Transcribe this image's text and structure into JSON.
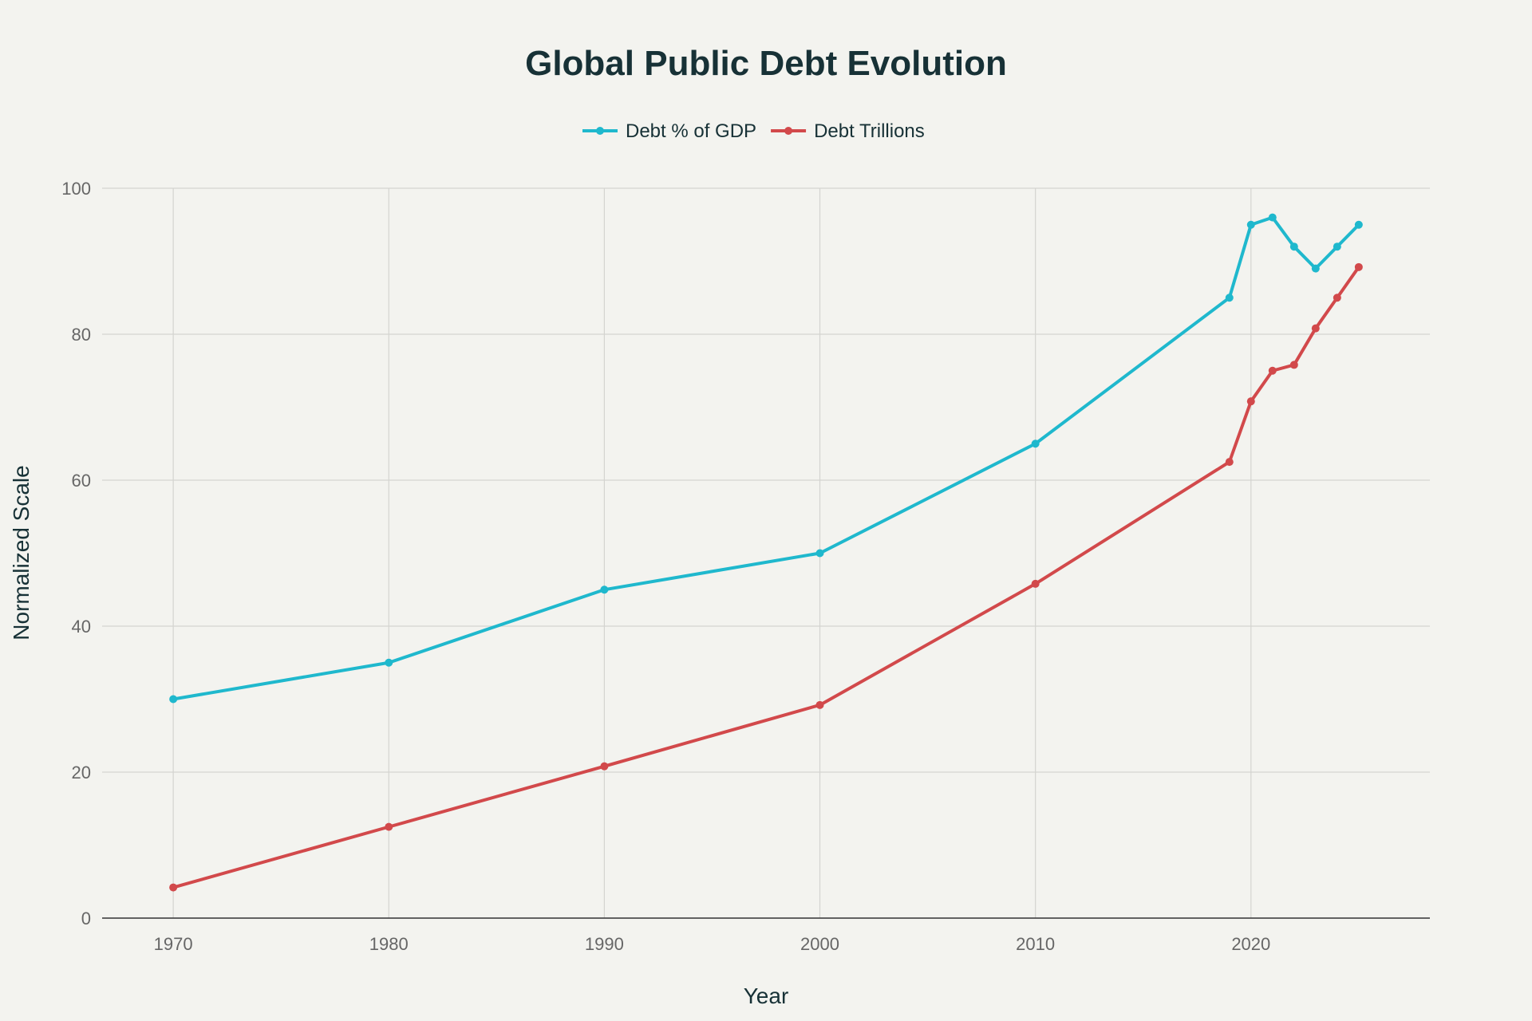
{
  "chart_data": {
    "type": "line",
    "title": "Global Public Debt Evolution",
    "xlabel": "Year",
    "ylabel": "Normalized Scale",
    "xlim": [
      1966.7,
      2028.3
    ],
    "ylim": [
      0,
      100
    ],
    "x_ticks": [
      1970,
      1980,
      1990,
      2000,
      2010,
      2020
    ],
    "y_ticks": [
      0,
      20,
      40,
      60,
      80,
      100
    ],
    "grid": true,
    "legend_position": "top-center",
    "x": [
      1970,
      1980,
      1990,
      2000,
      2010,
      2019,
      2020,
      2021,
      2022,
      2023,
      2024,
      2025
    ],
    "series": [
      {
        "name": "Debt % of GDP",
        "color": "#1fb8cd",
        "values": [
          30,
          35,
          45,
          50,
          65,
          85,
          95,
          96,
          92,
          89,
          92,
          95
        ]
      },
      {
        "name": "Debt Trillions",
        "color": "#d2494b",
        "values": [
          4.2,
          12.5,
          20.8,
          29.2,
          45.8,
          62.5,
          70.8,
          75,
          75.8,
          80.8,
          85,
          89.2
        ]
      }
    ]
  }
}
